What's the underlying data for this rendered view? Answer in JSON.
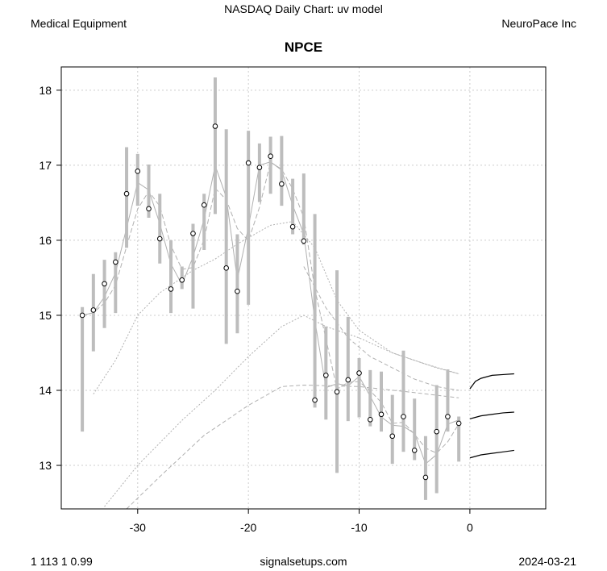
{
  "header": {
    "title": "NASDAQ Daily Chart: uv model",
    "sector": "Medical Equipment",
    "company": "NeuroPace Inc"
  },
  "footer": {
    "left": "1 113 1 0.99",
    "center": "signalsetups.com",
    "right": "2024-03-21"
  },
  "chart_data": {
    "type": "line",
    "title": "NPCE",
    "xlim": [
      -36.9,
      6.85
    ],
    "ylim": [
      12.42,
      18.31
    ],
    "xticks": [
      -30,
      -20,
      -10,
      0
    ],
    "yticks": [
      13,
      14,
      15,
      16,
      17,
      18
    ],
    "grid": true,
    "bars": {
      "x": [
        -35,
        -34,
        -33,
        -32,
        -31,
        -30,
        -29,
        -28,
        -27,
        -26,
        -25,
        -24,
        -23,
        -22,
        -21,
        -20,
        -19,
        -18,
        -17,
        -16,
        -15,
        -14,
        -13,
        -12,
        -11,
        -10,
        -9,
        -8,
        -7,
        -6,
        -5,
        -4,
        -3,
        -2,
        -1
      ],
      "close": [
        15.0,
        15.07,
        15.42,
        15.71,
        16.62,
        16.92,
        16.42,
        16.02,
        15.35,
        15.47,
        16.09,
        16.47,
        17.52,
        15.63,
        15.32,
        17.03,
        16.97,
        17.12,
        16.75,
        16.18,
        15.99,
        13.87,
        14.2,
        13.98,
        14.14,
        14.23,
        13.61,
        13.68,
        13.39,
        13.65,
        13.2,
        12.84,
        13.45,
        13.65,
        13.56
      ],
      "high": [
        15.11,
        15.55,
        15.74,
        15.84,
        17.24,
        17.15,
        17.01,
        16.62,
        16.0,
        15.65,
        16.22,
        16.62,
        18.17,
        17.48,
        16.08,
        17.46,
        17.29,
        17.38,
        17.39,
        16.82,
        16.89,
        16.35,
        14.85,
        15.6,
        14.98,
        14.43,
        14.27,
        14.25,
        13.94,
        14.53,
        13.89,
        13.39,
        14.07,
        14.28,
        13.65
      ],
      "low": [
        13.45,
        14.52,
        14.83,
        15.03,
        15.9,
        16.46,
        16.3,
        15.69,
        15.03,
        15.35,
        15.09,
        15.87,
        16.35,
        14.62,
        14.76,
        15.14,
        16.51,
        16.62,
        16.46,
        16.08,
        15.94,
        13.77,
        13.61,
        12.9,
        13.59,
        13.64,
        13.52,
        13.45,
        13.02,
        13.18,
        13.07,
        12.54,
        12.63,
        13.45,
        13.05
      ]
    },
    "trend_lines": [
      {
        "name": "long-dotted-upper",
        "style": "dotted",
        "x": [
          -34,
          -32,
          -30,
          -28,
          -25,
          -23,
          -21,
          -18,
          -16,
          -14,
          -12,
          -10,
          -7,
          -3,
          -1
        ],
        "y": [
          13.95,
          14.4,
          15.0,
          15.3,
          15.6,
          15.75,
          15.95,
          16.2,
          16.25,
          15.9,
          15.2,
          14.8,
          14.5,
          14.3,
          14.22
        ]
      },
      {
        "name": "long-dotted-mid",
        "style": "dotted",
        "x": [
          -33,
          -30,
          -26,
          -23,
          -20,
          -17,
          -15,
          -13,
          -10,
          -7,
          -4,
          -1
        ],
        "y": [
          12.45,
          13.0,
          13.6,
          14.0,
          14.45,
          14.85,
          15.0,
          14.85,
          14.7,
          14.5,
          14.35,
          14.22
        ]
      },
      {
        "name": "mid-dashed-decline",
        "style": "dashed",
        "x": [
          -15,
          -13,
          -11,
          -9,
          -7,
          -5,
          -3,
          -1
        ],
        "y": [
          15.65,
          15.1,
          14.7,
          14.45,
          14.3,
          14.15,
          14.05,
          14.0
        ]
      },
      {
        "name": "long-dashed-lower",
        "style": "dashed",
        "x": [
          -31,
          -28,
          -24,
          -20,
          -17,
          -15,
          -10,
          -5,
          -1
        ],
        "y": [
          12.42,
          12.85,
          13.4,
          13.8,
          14.05,
          14.07,
          14.05,
          13.97,
          13.9
        ]
      }
    ],
    "forecast": {
      "x": [
        0,
        0.5,
        1,
        2,
        3,
        4
      ],
      "upper": [
        14.02,
        14.12,
        14.16,
        14.2,
        14.21,
        14.22
      ],
      "mid": [
        13.62,
        13.64,
        13.66,
        13.68,
        13.7,
        13.71
      ],
      "lower": [
        13.1,
        13.12,
        13.14,
        13.16,
        13.18,
        13.2
      ]
    },
    "colors": {
      "bar": "#bdbdbd",
      "line": "#b0b0b0",
      "grid": "#cccccc",
      "forecast": "#000000"
    }
  }
}
